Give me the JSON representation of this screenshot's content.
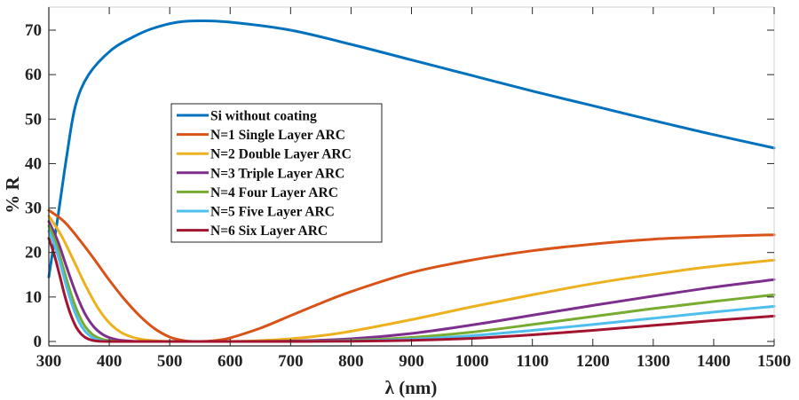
{
  "chart_data": {
    "type": "line",
    "title": "",
    "xlabel": "λ (nm)",
    "ylabel": "% R",
    "xlim": [
      300,
      1500
    ],
    "ylim": [
      -1,
      75
    ],
    "xticks": [
      300,
      400,
      500,
      600,
      700,
      800,
      900,
      1000,
      1100,
      1200,
      1300,
      1400,
      1500
    ],
    "yticks": [
      0,
      10,
      20,
      30,
      40,
      50,
      60,
      70
    ],
    "xtick_labels": [
      "300",
      "400",
      "500",
      "600",
      "700",
      "800",
      "900",
      "1000",
      "1100",
      "1200",
      "1300",
      "1400",
      "1500"
    ],
    "ytick_labels": [
      "0",
      "10",
      "20",
      "30",
      "40",
      "50",
      "60",
      "70"
    ],
    "grid": false,
    "legend_position": "center-left",
    "series": [
      {
        "name": "Si without coating",
        "color": "#0072BD",
        "x": [
          300,
          315,
          330,
          344,
          366,
          403,
          440,
          470,
          513,
          550,
          600,
          700,
          800,
          900,
          1000,
          1100,
          1200,
          1300,
          1400,
          1500
        ],
        "y": [
          14.5,
          28,
          42,
          53,
          60,
          65.5,
          68.5,
          70.3,
          71.8,
          72.1,
          71.8,
          70,
          66.8,
          63.3,
          59.8,
          56.3,
          53,
          49.7,
          46.5,
          43.5
        ]
      },
      {
        "name": "N=1 Single Layer ARC",
        "color": "#D95319",
        "x": [
          300,
          325,
          350,
          375,
          400,
          425,
          450,
          475,
          500,
          525,
          550,
          575,
          600,
          650,
          700,
          750,
          800,
          900,
          1000,
          1100,
          1200,
          1300,
          1400,
          1500
        ],
        "y": [
          29.5,
          27,
          23,
          18.5,
          13.8,
          9.5,
          5.8,
          2.9,
          1.0,
          0.15,
          0,
          0.2,
          0.8,
          3.0,
          5.8,
          8.6,
          11.2,
          15.5,
          18.3,
          20.4,
          21.9,
          23,
          23.6,
          24
        ]
      },
      {
        "name": "N=2 Double Layer ARC",
        "color": "#EDB120",
        "x": [
          300,
          320,
          340,
          360,
          380,
          400,
          420,
          440,
          460,
          480,
          500,
          550,
          600,
          650,
          700,
          750,
          800,
          900,
          1000,
          1100,
          1200,
          1300,
          1400,
          1500
        ],
        "y": [
          28.2,
          24,
          18.5,
          12.8,
          7.8,
          4.2,
          2.0,
          0.9,
          0.35,
          0.1,
          0.02,
          0,
          0,
          0.2,
          0.6,
          1.3,
          2.3,
          4.9,
          7.8,
          10.5,
          13.0,
          15.1,
          16.9,
          18.3
        ]
      },
      {
        "name": "N=3 Triple Layer ARC",
        "color": "#7E2F8E",
        "x": [
          300,
          315,
          330,
          345,
          360,
          375,
          390,
          405,
          420,
          440,
          460,
          500,
          600,
          700,
          800,
          900,
          1000,
          1100,
          1200,
          1300,
          1400,
          1500
        ],
        "y": [
          27,
          22.5,
          16.5,
          10.8,
          6.2,
          3.2,
          1.5,
          0.65,
          0.25,
          0.06,
          0,
          0,
          0,
          0.1,
          0.6,
          1.8,
          3.7,
          5.9,
          8.1,
          10.2,
          12.2,
          13.9
        ]
      },
      {
        "name": "N=4 Four Layer ARC",
        "color": "#77AC30",
        "x": [
          300,
          312,
          324,
          336,
          348,
          360,
          372,
          384,
          396,
          410,
          430,
          500,
          600,
          700,
          800,
          900,
          1000,
          1100,
          1200,
          1300,
          1400,
          1500
        ],
        "y": [
          26,
          22,
          16.5,
          11,
          6.5,
          3.4,
          1.6,
          0.7,
          0.25,
          0.06,
          0,
          0,
          0,
          0.02,
          0.25,
          0.9,
          2.1,
          3.8,
          5.6,
          7.4,
          9.0,
          10.5
        ]
      },
      {
        "name": "N=5 Five Layer ARC",
        "color": "#4DBEEE",
        "x": [
          300,
          310,
          320,
          330,
          340,
          350,
          360,
          370,
          380,
          392,
          410,
          500,
          600,
          700,
          800,
          900,
          1000,
          1100,
          1200,
          1300,
          1400,
          1500
        ],
        "y": [
          24.8,
          21.5,
          17,
          12,
          7.7,
          4.4,
          2.3,
          1.05,
          0.4,
          0.1,
          0,
          0,
          0,
          0,
          0.12,
          0.5,
          1.3,
          2.5,
          3.8,
          5.2,
          6.6,
          7.9
        ]
      },
      {
        "name": "N=6 Six Layer ARC",
        "color": "#A2142F",
        "x": [
          300,
          309,
          318,
          327,
          336,
          345,
          354,
          363,
          372,
          383,
          400,
          500,
          600,
          700,
          800,
          900,
          1000,
          1100,
          1200,
          1300,
          1400,
          1500
        ],
        "y": [
          23.2,
          19.5,
          14.8,
          10,
          6.1,
          3.3,
          1.6,
          0.7,
          0.25,
          0.06,
          0,
          0,
          0,
          0,
          0.05,
          0.25,
          0.7,
          1.5,
          2.5,
          3.6,
          4.7,
          5.7
        ]
      }
    ]
  }
}
